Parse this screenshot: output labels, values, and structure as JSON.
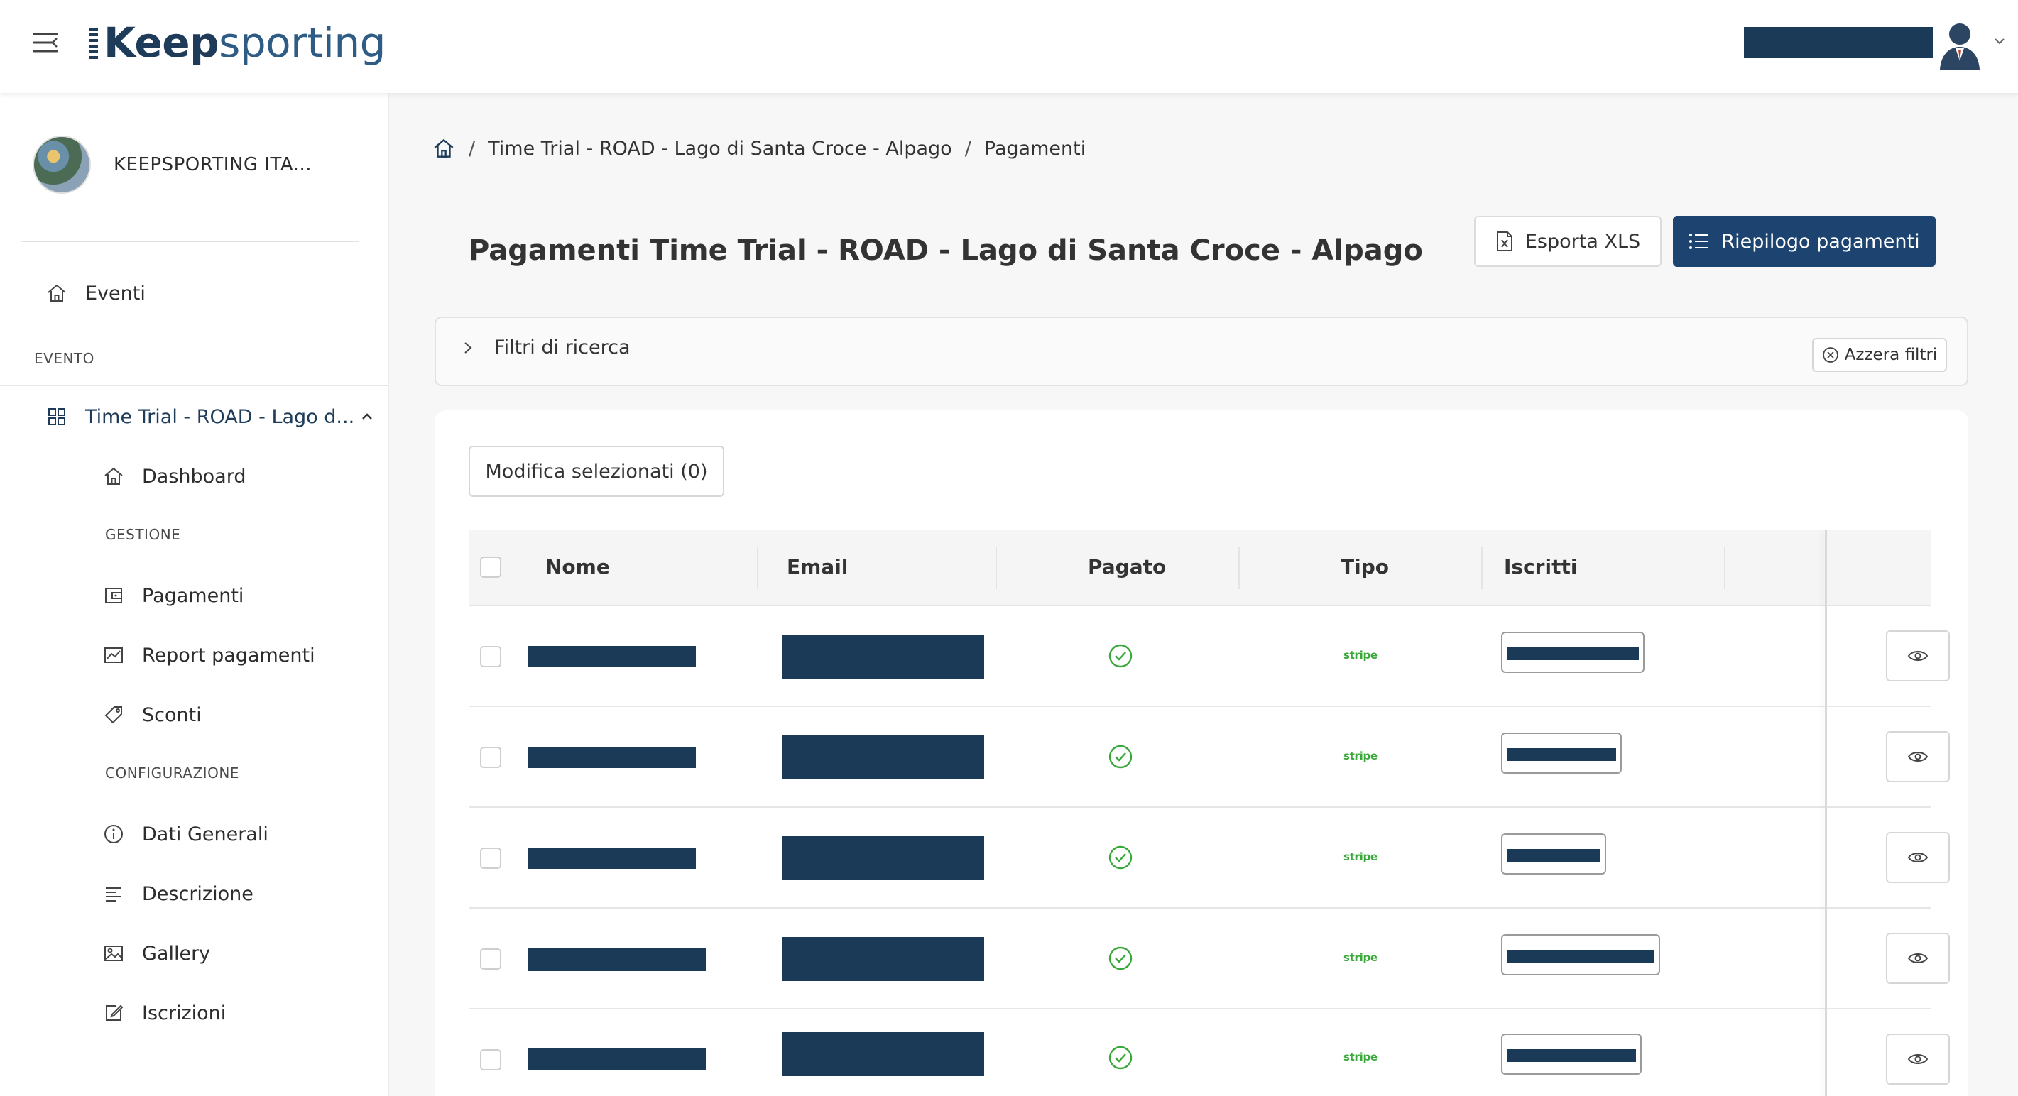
{
  "brand": {
    "logo_text_bold": "Keep",
    "logo_text_light": "sporting"
  },
  "sidebar": {
    "org_name": "KEEPSPORTING ITA...",
    "events_label": "Eventi",
    "section_event": "EVENTO",
    "event_name": "Time Trial - ROAD - Lago d...",
    "dashboard": "Dashboard",
    "section_gestione": "GESTIONE",
    "pagamenti": "Pagamenti",
    "report_pagamenti": "Report pagamenti",
    "sconti": "Sconti",
    "section_config": "CONFIGURAZIONE",
    "dati_generali": "Dati Generali",
    "descrizione": "Descrizione",
    "gallery": "Gallery",
    "iscrizioni": "Iscrizioni"
  },
  "breadcrumb": {
    "sep": "/",
    "event": "Time Trial - ROAD - Lago di Santa Croce - Alpago",
    "current": "Pagamenti"
  },
  "page": {
    "title": "Pagamenti Time Trial - ROAD - Lago di Santa Croce - Alpago",
    "export_label": "Esporta XLS",
    "summary_label": "Riepilogo pagamenti",
    "filters_label": "Filtri di ricerca",
    "reset_filters_label": "Azzera filtri",
    "bulk_edit_label": "Modifica selezionati (0)"
  },
  "table": {
    "columns": [
      "Nome",
      "Email",
      "Pagato",
      "Tipo",
      "Iscritti"
    ],
    "rows": [
      {
        "paid": true,
        "tipo": "stripe"
      },
      {
        "paid": true,
        "tipo": "stripe"
      },
      {
        "paid": true,
        "tipo": "stripe"
      },
      {
        "paid": true,
        "tipo": "stripe"
      },
      {
        "paid": true,
        "tipo": "stripe"
      }
    ]
  },
  "colors": {
    "primary": "#1d4470",
    "redaction": "#1b3a58",
    "paid_green": "#3aa83a"
  },
  "icons": {
    "menu": "hamburger-icon",
    "home": "home-icon",
    "paid": "check-circle-icon",
    "view": "eye-icon"
  }
}
